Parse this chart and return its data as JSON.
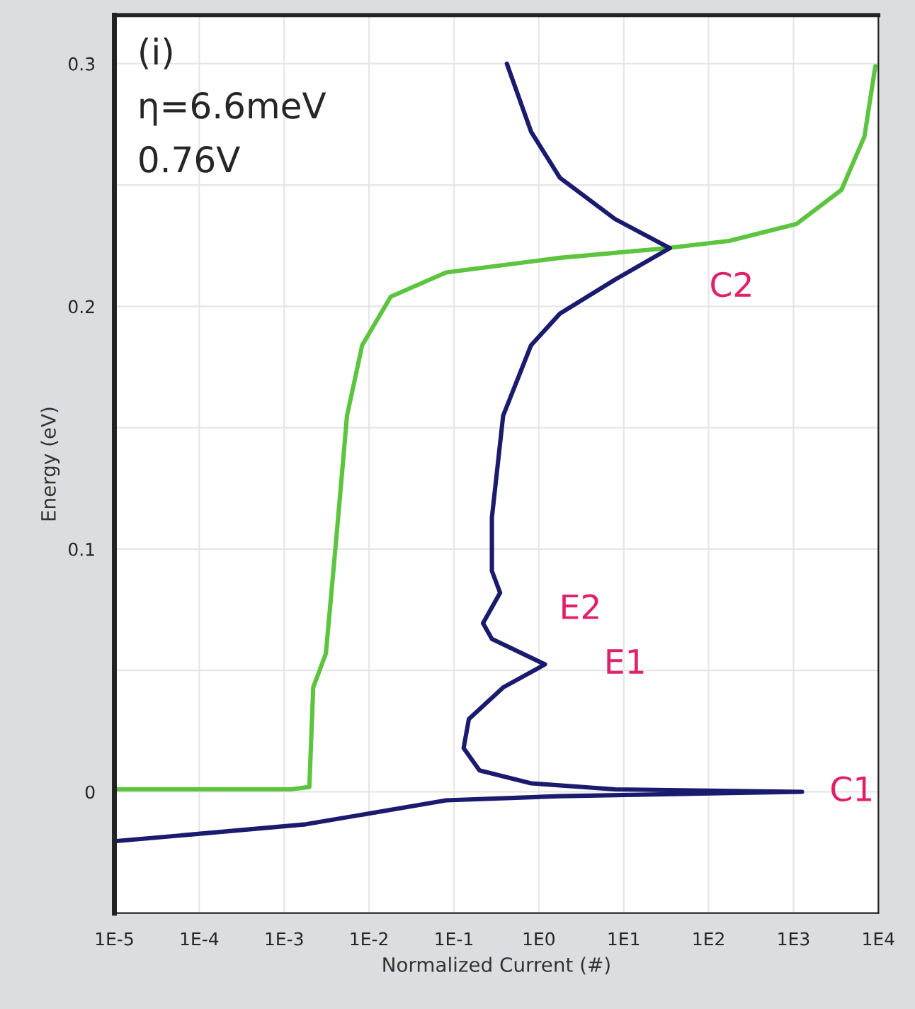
{
  "chart_data": {
    "type": "line",
    "xlabel": "Normalized Current (#)",
    "ylabel": "Energy (eV)",
    "log": "x",
    "grid": true,
    "marker": "none",
    "line_style": "solid",
    "xlim": [
      1e-05,
      10000.0
    ],
    "ylim": [
      -0.05,
      0.32
    ],
    "xticks": [
      {
        "value": 1e-05,
        "label": "1E-5"
      },
      {
        "value": 0.0001,
        "label": "1E-4"
      },
      {
        "value": 0.001,
        "label": "1E-3"
      },
      {
        "value": 0.01,
        "label": "1E-2"
      },
      {
        "value": 0.1,
        "label": "1E-1"
      },
      {
        "value": 1,
        "label": "1E0"
      },
      {
        "value": 10,
        "label": "1E1"
      },
      {
        "value": 100,
        "label": "1E2"
      },
      {
        "value": 1000,
        "label": "1E3"
      },
      {
        "value": 10000,
        "label": "1E4"
      }
    ],
    "yticks": [
      {
        "value": -0.05,
        "label": null
      },
      0,
      {
        "value": 0.05,
        "label": null
      },
      0.1,
      {
        "value": 0.15,
        "label": null
      },
      0.2,
      {
        "value": 0.25,
        "label": null
      },
      0.3
    ],
    "series": [
      {
        "color": "#5cc43e",
        "x": [
          1e-05,
          1e-05,
          0.0012,
          0.00198,
          0.0022,
          0.0031,
          0.0038,
          0.0044,
          0.0055,
          0.0083,
          0.018,
          0.081,
          1.77,
          32,
          174,
          1090,
          3670,
          6850,
          9200
        ],
        "values": [
          -0.05,
          0.001,
          0.001,
          0.002,
          0.043,
          0.057,
          0.091,
          0.116,
          0.155,
          0.184,
          0.204,
          0.214,
          0.22,
          0.224,
          0.227,
          0.234,
          0.248,
          0.27,
          0.299
        ]
      },
      {
        "color": "#1a1a6e",
        "x": [
          0.42,
          0.81,
          1.77,
          7.9,
          35,
          7.9,
          1.77,
          0.81,
          0.38,
          0.28,
          0.28,
          0.35,
          0.22,
          0.28,
          1.18,
          0.38,
          0.15,
          0.13,
          0.2,
          0.81,
          7.9,
          1260,
          1.77,
          0.081,
          0.0018,
          1e-05
        ],
        "values": [
          0.3,
          0.272,
          0.253,
          0.236,
          0.224,
          0.211,
          0.197,
          0.184,
          0.155,
          0.113,
          0.091,
          0.082,
          0.0695,
          0.063,
          0.0525,
          0.043,
          0.03,
          0.018,
          0.0088,
          0.0035,
          0.001,
          0,
          -0.0018,
          -0.0035,
          -0.0134,
          -0.0204
        ]
      }
    ],
    "annotations": [
      "(i)",
      "η=6.6meV",
      "0.76V",
      {
        "text": "C2",
        "x": 35,
        "y": 0.224
      },
      {
        "text": "E2",
        "x": 0.35,
        "y": 0.075
      },
      {
        "text": "E1",
        "x": 1.18,
        "y": 0.0525
      },
      {
        "text": "C1",
        "x": 1260,
        "y": 0
      }
    ]
  }
}
